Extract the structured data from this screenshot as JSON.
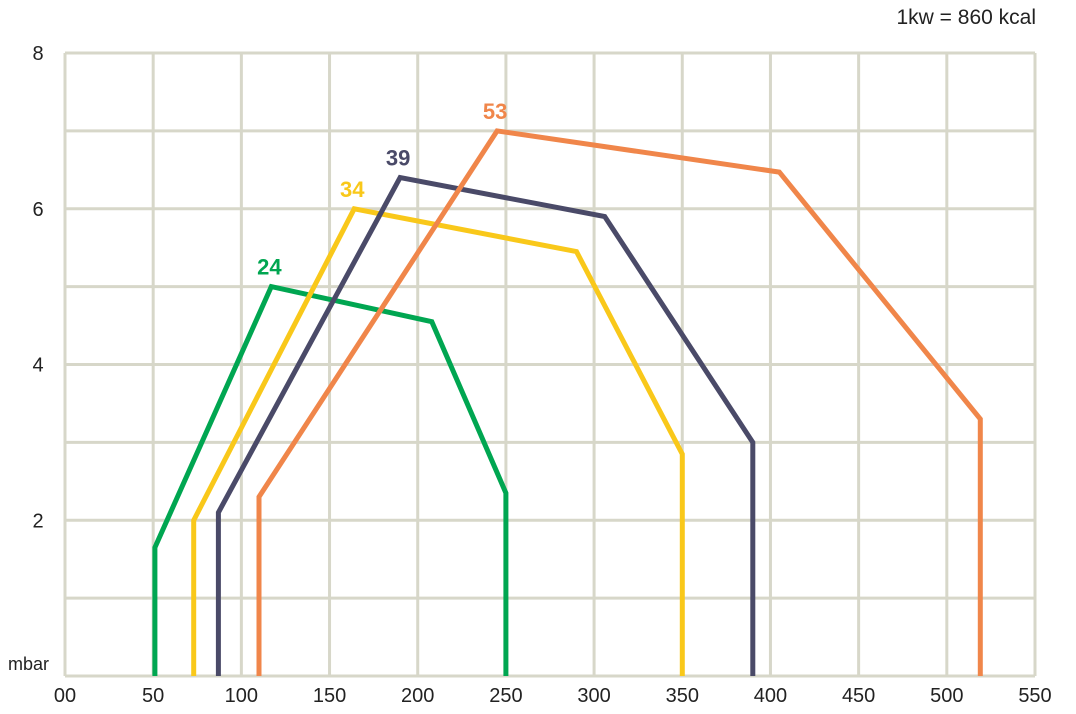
{
  "chart_data": {
    "type": "line",
    "title": "",
    "note": "1kw = 860 kcal",
    "xlabel": "",
    "ylabel": "mbar",
    "xlim": [
      0,
      550
    ],
    "ylim": [
      0,
      8
    ],
    "x_ticks": [
      {
        "value": 0,
        "label": "00"
      },
      {
        "value": 50,
        "label": "50"
      },
      {
        "value": 100,
        "label": "100"
      },
      {
        "value": 150,
        "label": "150"
      },
      {
        "value": 200,
        "label": "200"
      },
      {
        "value": 250,
        "label": "250"
      },
      {
        "value": 300,
        "label": "300"
      },
      {
        "value": 350,
        "label": "350"
      },
      {
        "value": 400,
        "label": "400"
      },
      {
        "value": 450,
        "label": "450"
      },
      {
        "value": 500,
        "label": "500"
      },
      {
        "value": 550,
        "label": "550"
      }
    ],
    "y_ticks": [
      {
        "value": 2,
        "label": "2"
      },
      {
        "value": 4,
        "label": "4"
      },
      {
        "value": 6,
        "label": "6"
      },
      {
        "value": 8,
        "label": "8"
      }
    ],
    "grid": true,
    "grid_color": "#d7d7c9",
    "series": [
      {
        "name": "24",
        "color": "#00a651",
        "points": [
          [
            51,
            0
          ],
          [
            51,
            1.65
          ],
          [
            117,
            5.0
          ],
          [
            208,
            4.55
          ],
          [
            250,
            2.35
          ],
          [
            250,
            0
          ]
        ]
      },
      {
        "name": "34",
        "color": "#f9c81a",
        "points": [
          [
            73,
            0
          ],
          [
            73,
            2.0
          ],
          [
            164,
            6.0
          ],
          [
            290,
            5.45
          ],
          [
            350,
            2.85
          ],
          [
            350,
            0
          ]
        ]
      },
      {
        "name": "39",
        "color": "#4a4a68",
        "points": [
          [
            87,
            0
          ],
          [
            87,
            2.1
          ],
          [
            190,
            6.4
          ],
          [
            306,
            5.9
          ],
          [
            390,
            3.0
          ],
          [
            390,
            0
          ]
        ]
      },
      {
        "name": "53",
        "color": "#f0864a",
        "points": [
          [
            110,
            0
          ],
          [
            110,
            2.3
          ],
          [
            245,
            7.0
          ],
          [
            405,
            6.47
          ],
          [
            519,
            3.3
          ],
          [
            519,
            0
          ]
        ]
      }
    ]
  }
}
